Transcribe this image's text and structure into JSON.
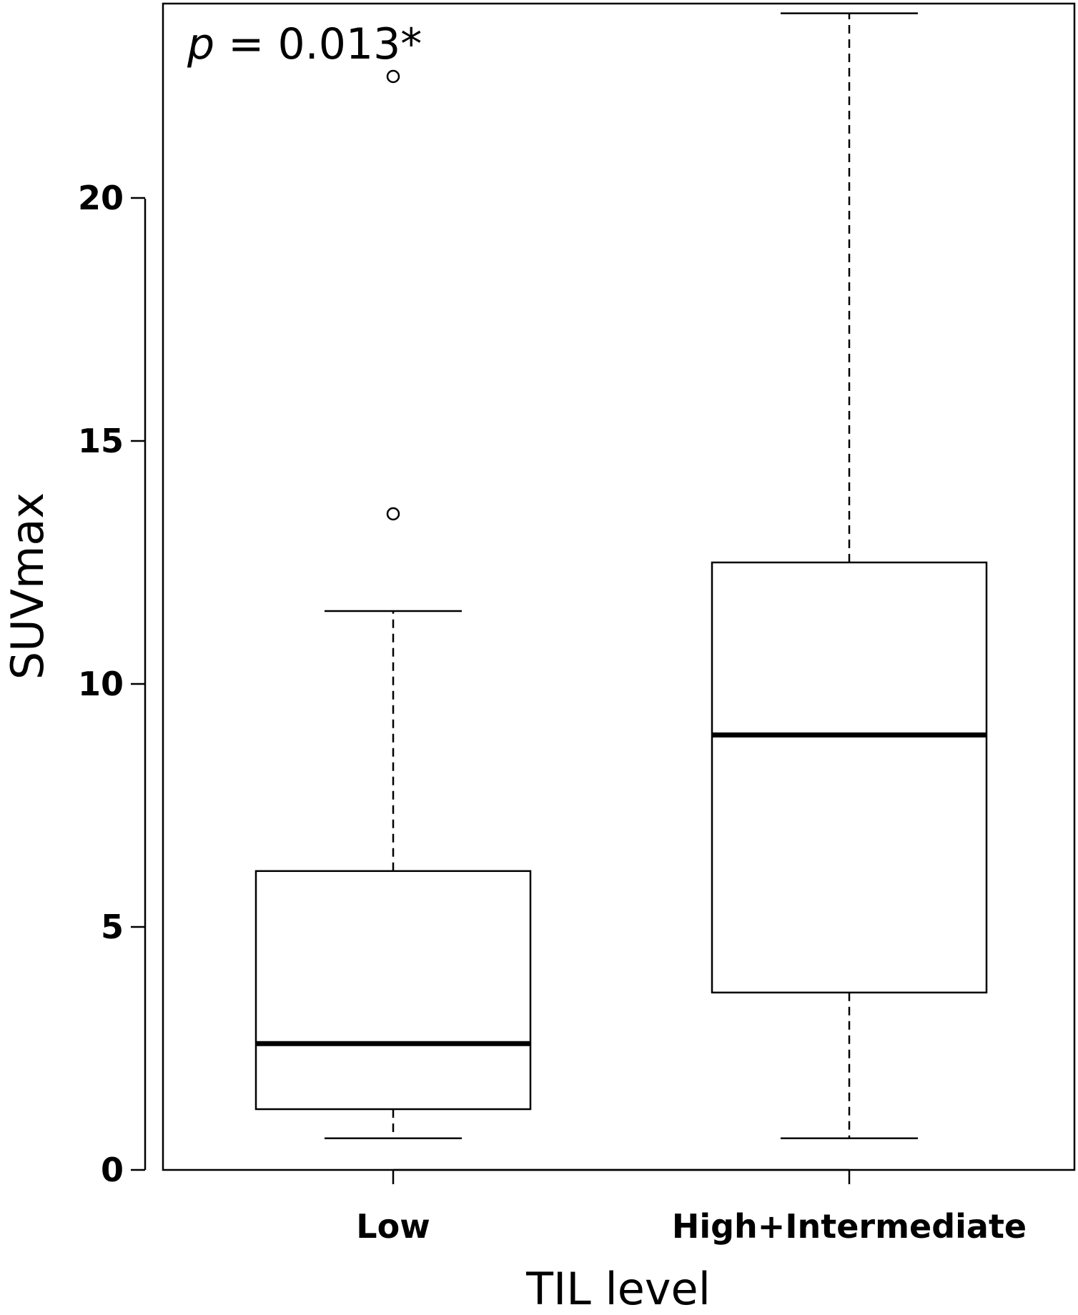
{
  "chart_data": {
    "type": "box",
    "title": "",
    "xlabel": "TIL level",
    "ylabel": "SUVmax",
    "ylim": [
      0,
      24
    ],
    "yticks": [
      0,
      5,
      10,
      15,
      20
    ],
    "ytick_labels": [
      "0",
      "5",
      "10",
      "15",
      "20"
    ],
    "grid": false,
    "legend": "none",
    "annotation": {
      "prefix": "p",
      "text": " = 0.013*"
    },
    "categories": [
      "Low",
      "High+Intermediate"
    ],
    "boxes": [
      {
        "category": "Low",
        "whisker_low": 0.65,
        "q1": 1.25,
        "median": 2.6,
        "q3": 6.15,
        "whisker_high": 11.5,
        "outliers": [
          13.5,
          22.5
        ]
      },
      {
        "category": "High+Intermediate",
        "whisker_low": 0.65,
        "q1": 3.65,
        "median": 8.95,
        "q3": 12.5,
        "whisker_high": 23.8,
        "outliers": []
      }
    ]
  }
}
